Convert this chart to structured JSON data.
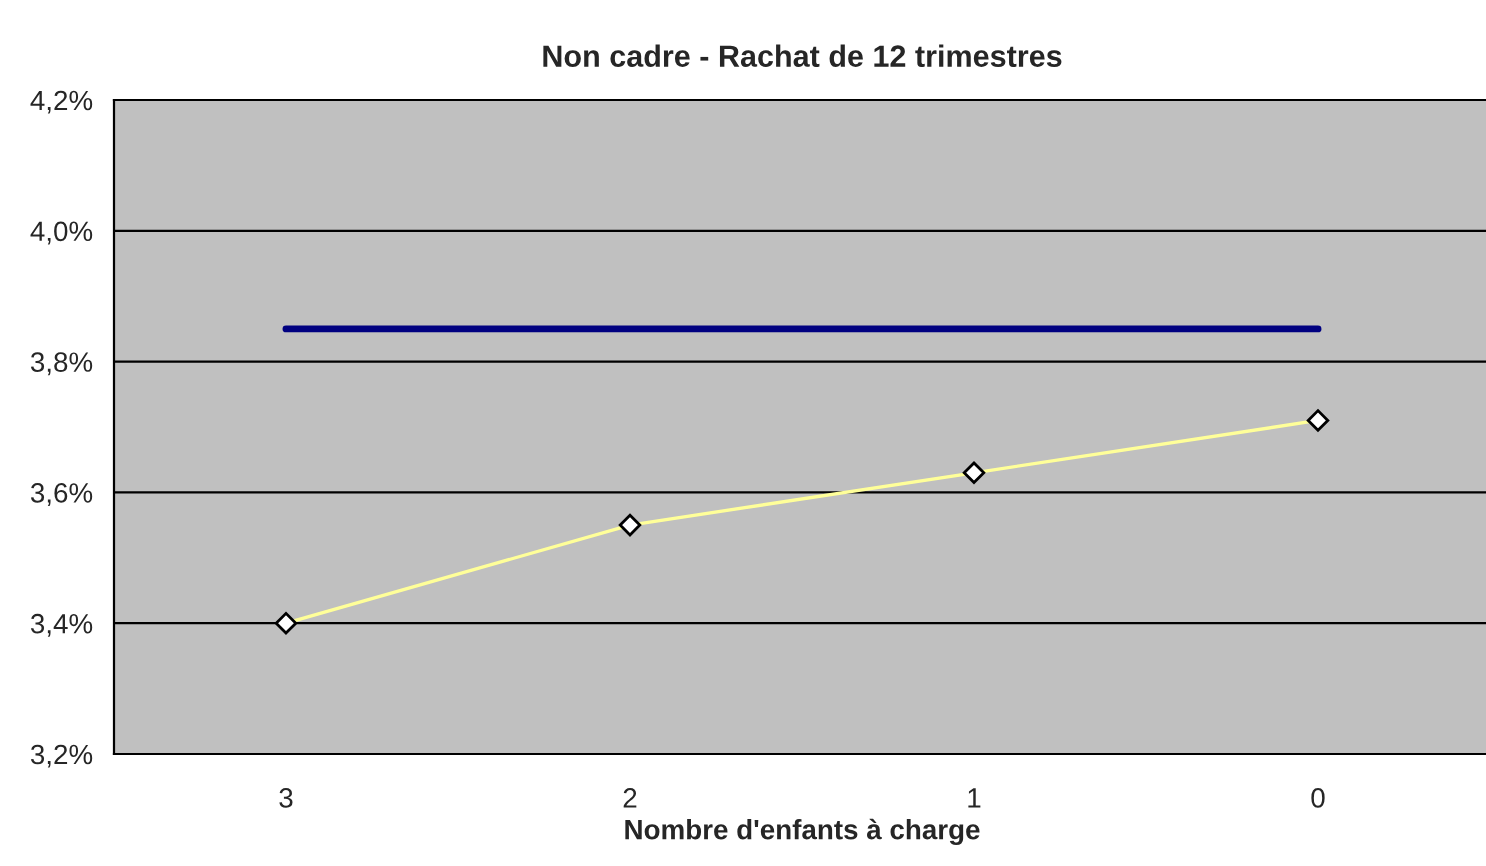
{
  "chart_data": {
    "type": "line",
    "title": "Non cadre - Rachat de 12 trimestres",
    "xlabel": "Nombre d'enfants à charge",
    "categories": [
      "3",
      "2",
      "1",
      "0"
    ],
    "series": [
      {
        "color": "#000080",
        "values": [
          3.85,
          3.85,
          3.85,
          3.85
        ],
        "marker": "none"
      },
      {
        "color": "#ffff99",
        "values": [
          3.4,
          3.55,
          3.63,
          3.71
        ],
        "marker": "diamond"
      }
    ],
    "ylim": [
      3.2,
      4.2
    ],
    "yticks": [
      {
        "value": 3.2,
        "label": "3,2%"
      },
      {
        "value": 3.4,
        "label": "3,4%"
      },
      {
        "value": 3.6,
        "label": "3,6%"
      },
      {
        "value": 3.8,
        "label": "3,8%"
      },
      {
        "value": 4.0,
        "label": "4,0%"
      },
      {
        "value": 4.2,
        "label": "4,2%"
      }
    ],
    "grid": "y",
    "legend": false
  }
}
